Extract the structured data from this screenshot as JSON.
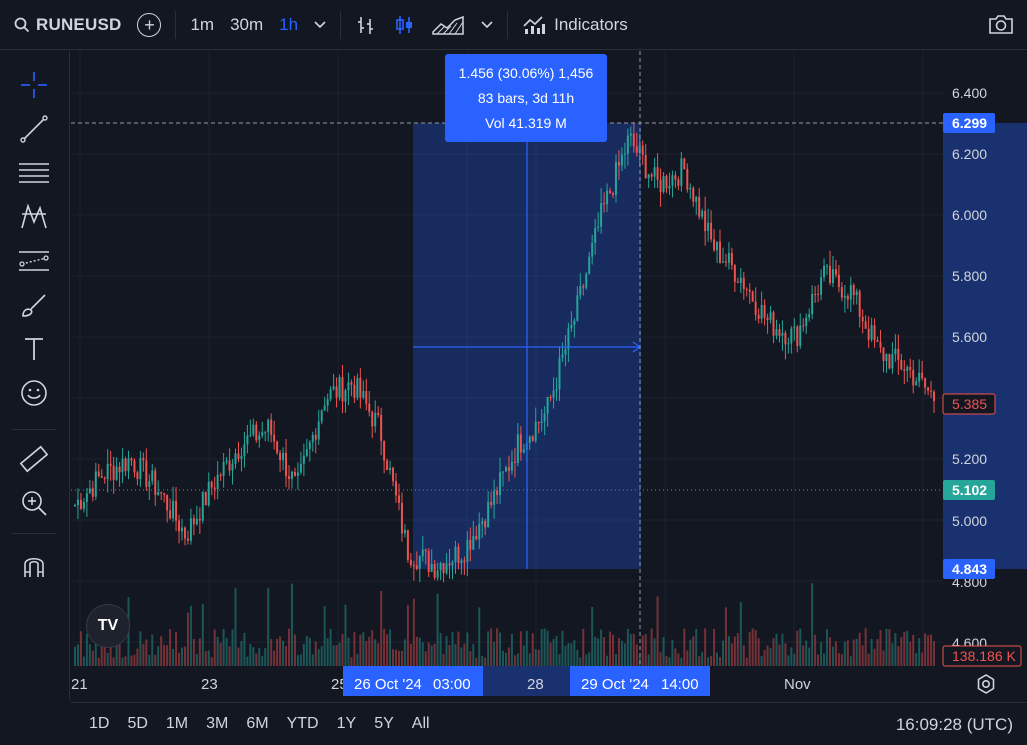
{
  "toolbar": {
    "symbol": "RUNEUSD",
    "intervals": [
      "1m",
      "30m",
      "1h"
    ],
    "active_interval": "1h",
    "indicators_label": "Indicators"
  },
  "price_axis": {
    "ticks": [
      "6.400",
      "6.200",
      "6.000",
      "5.800",
      "5.600",
      "5.200",
      "5.000",
      "4.800",
      "4.600"
    ],
    "labels": {
      "high_label": "6.299",
      "last_label": "5.385",
      "current_label": "5.102",
      "low_label": "4.843",
      "volume_label": "138.186 K"
    }
  },
  "time_axis": {
    "ticks": [
      "21",
      "23",
      "25",
      "28",
      "Nov"
    ],
    "range_start": "26 Oct '24",
    "range_start_time": "03:00",
    "range_end": "29 Oct '24",
    "range_end_time": "14:00"
  },
  "measure_tooltip": {
    "line1": "1.456 (30.06%) 1,456",
    "line2": "83 bars, 3d 11h",
    "line3": "Vol 41.319 M"
  },
  "ranges": [
    "1D",
    "5D",
    "1M",
    "3M",
    "6M",
    "YTD",
    "1Y",
    "5Y",
    "All"
  ],
  "clock": "16:09:28 (UTC)",
  "logo": "TV",
  "colors": {
    "up": "#26a69a",
    "down": "#ef5350",
    "accent": "#2962ff",
    "background": "#131722"
  },
  "chart_data": {
    "type": "candlestick",
    "symbol": "RUNEUSD",
    "interval": "1h",
    "ylim": [
      4.6,
      6.4
    ],
    "x": [
      "21",
      "23",
      "25",
      "26 Oct '24 03:00",
      "28",
      "29 Oct '24 14:00",
      "Nov"
    ],
    "close_path": [
      5.05,
      5.15,
      5.2,
      5.1,
      4.95,
      5.12,
      5.25,
      5.3,
      5.1,
      5.4,
      5.45,
      5.3,
      4.9,
      4.85,
      4.9,
      5.05,
      5.25,
      5.35,
      5.65,
      6.0,
      6.25,
      6.1,
      6.15,
      5.9,
      5.8,
      5.65,
      5.6,
      5.8,
      5.75,
      5.55,
      5.5,
      5.4
    ],
    "measure": {
      "from": 4.843,
      "to": 6.299,
      "change": "1.456 (30.06%)",
      "bars": 83
    }
  }
}
